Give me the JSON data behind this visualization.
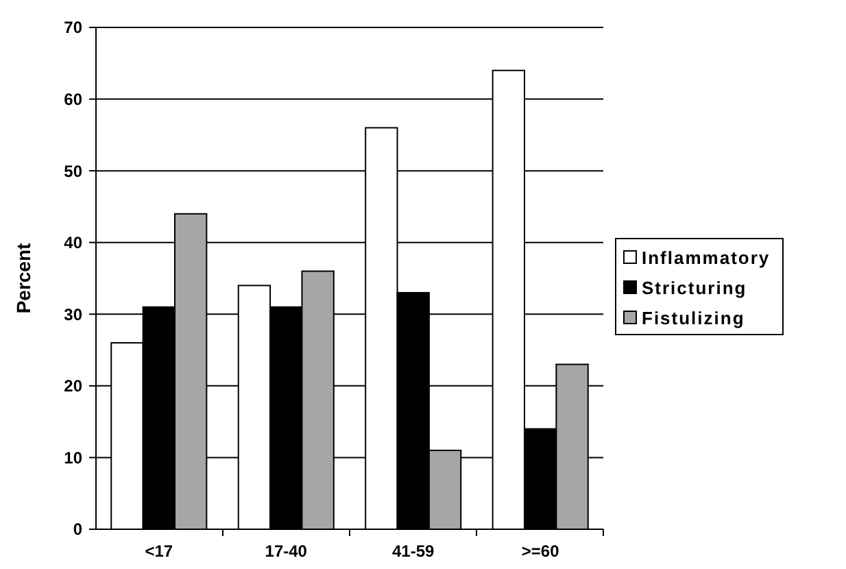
{
  "chart_data": {
    "type": "bar",
    "ylabel": "Percent",
    "categories": [
      "<17",
      "17-40",
      "41-59",
      ">=60"
    ],
    "series": [
      {
        "name": "Inflammatory",
        "color": "#ffffff",
        "values": [
          26,
          34,
          56,
          64
        ]
      },
      {
        "name": "Stricturing",
        "color": "#000000",
        "values": [
          31,
          31,
          33,
          14
        ]
      },
      {
        "name": "Fistulizing",
        "color": "#a6a6a6",
        "values": [
          44,
          36,
          11,
          23
        ]
      }
    ],
    "ylim": [
      0,
      70
    ],
    "yticks": [
      0,
      10,
      20,
      30,
      40,
      50,
      60,
      70
    ],
    "grid": "y",
    "legend": "right"
  }
}
